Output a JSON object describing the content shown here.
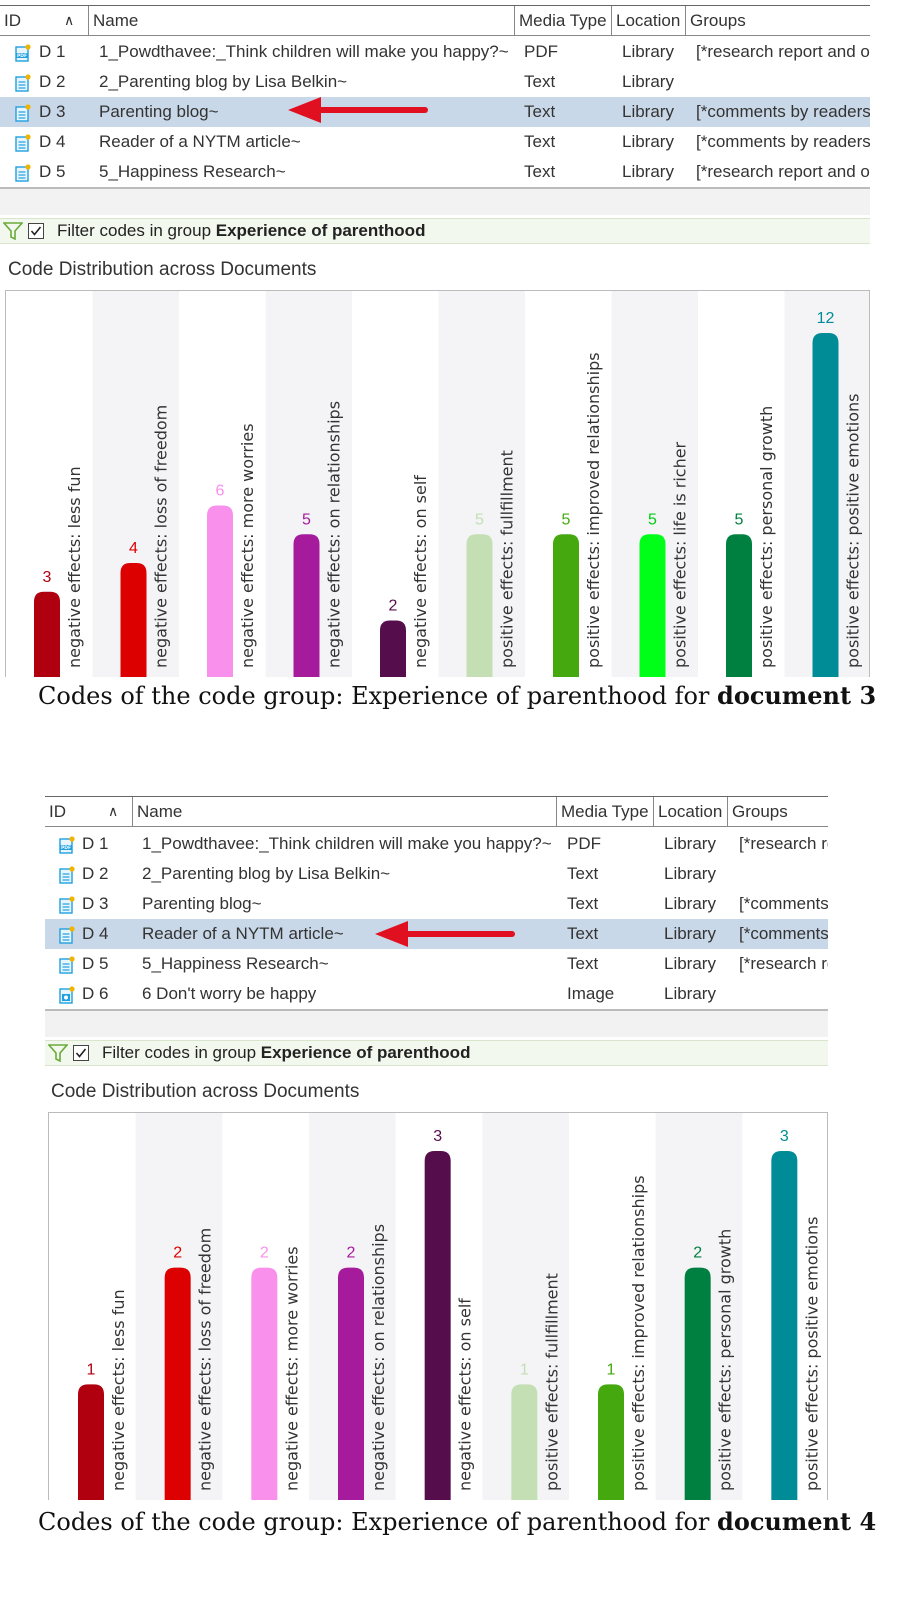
{
  "columns": {
    "id": "ID",
    "name": "Name",
    "media_type": "Media Type",
    "location": "Location",
    "groups": "Groups"
  },
  "panel1": {
    "rows": [
      {
        "id": "D 1",
        "name": "1_Powdthavee:_Think children will make you happy?~",
        "media": "PDF",
        "location": "Library",
        "groups": "[*research report and o",
        "icon": "pdf-doc-icon",
        "selected": false
      },
      {
        "id": "D 2",
        "name": "2_Parenting blog by Lisa Belkin~",
        "media": "Text",
        "location": "Library",
        "groups": "",
        "icon": "text-doc-icon",
        "selected": false
      },
      {
        "id": "D 3",
        "name": "Parenting blog~",
        "media": "Text",
        "location": "Library",
        "groups": "[*comments by readers",
        "icon": "text-doc-icon",
        "selected": true
      },
      {
        "id": "D 4",
        "name": "Reader of a NYTM article~",
        "media": "Text",
        "location": "Library",
        "groups": "[*comments by readers",
        "icon": "text-doc-icon",
        "selected": false
      },
      {
        "id": "D 5",
        "name": "5_Happiness Research~",
        "media": "Text",
        "location": "Library",
        "groups": "[*research report and o",
        "icon": "text-doc-icon",
        "selected": false
      }
    ],
    "filter_prefix": "Filter codes in group ",
    "filter_group": "Experience of parenthood",
    "dist_title": "Code Distribution across Documents",
    "caption_prefix": "Codes of the code group: Experience of parenthood for ",
    "caption_doc": "document 3"
  },
  "panel2": {
    "rows": [
      {
        "id": "D 1",
        "name": "1_Powdthavee:_Think children will make you happy?~",
        "media": "PDF",
        "location": "Library",
        "groups": "[*research re",
        "icon": "pdf-doc-icon",
        "selected": false
      },
      {
        "id": "D 2",
        "name": "2_Parenting blog by Lisa Belkin~",
        "media": "Text",
        "location": "Library",
        "groups": "",
        "icon": "text-doc-icon",
        "selected": false
      },
      {
        "id": "D 3",
        "name": "Parenting blog~",
        "media": "Text",
        "location": "Library",
        "groups": "[*comments",
        "icon": "text-doc-icon",
        "selected": false
      },
      {
        "id": "D 4",
        "name": "Reader of a NYTM article~",
        "media": "Text",
        "location": "Library",
        "groups": "[*comments",
        "icon": "text-doc-icon",
        "selected": true
      },
      {
        "id": "D 5",
        "name": "5_Happiness Research~",
        "media": "Text",
        "location": "Library",
        "groups": "[*research re",
        "icon": "text-doc-icon",
        "selected": false
      },
      {
        "id": "D 6",
        "name": "6 Don't worry be happy",
        "media": "Image",
        "location": "Library",
        "groups": "",
        "icon": "image-doc-icon",
        "selected": false
      }
    ],
    "filter_prefix": "Filter codes in group ",
    "filter_group": "Experience of parenthood",
    "dist_title": "Code Distribution across Documents",
    "caption_prefix": "Codes of the code group: Experience of parenthood for ",
    "caption_doc": "document 4"
  },
  "chart_data": [
    {
      "type": "bar",
      "categories": [
        "negative effects: less fun",
        "negative effects: loss of freedom",
        "negative effects: more worries",
        "negative effects: on relationships",
        "negative effects: on self",
        "positive effects: fullfillment",
        "positive effects: improved relationships",
        "positive effects: life is richer",
        "positive effects: personal growth",
        "positive effects: positive emotions"
      ],
      "values": [
        3,
        4,
        6,
        5,
        2,
        5,
        5,
        5,
        5,
        12
      ],
      "colors": [
        "#b00010",
        "#dd0000",
        "#f990ec",
        "#a51b9c",
        "#560d4c",
        "#c3dfb3",
        "#44a80e",
        "#00ff18",
        "#008040",
        "#008c96"
      ],
      "value_label_colors": [
        "#b00010",
        "#dd0000",
        "#f990ec",
        "#a51b9c",
        "#560d4c",
        "#c3dfb3",
        "#44a80e",
        "#00cc14",
        "#008040",
        "#008c96"
      ],
      "ylim": [
        0,
        12
      ]
    },
    {
      "type": "bar",
      "categories": [
        "negative effects: less fun",
        "negative effects: loss of freedom",
        "negative effects: more worries",
        "negative effects: on relationships",
        "negative effects: on self",
        "positive effects: fullfillment",
        "positive effects: improved relationships",
        "positive effects: personal growth",
        "positive effects: positive emotions"
      ],
      "values": [
        1,
        2,
        2,
        2,
        3,
        1,
        1,
        2,
        3
      ],
      "colors": [
        "#b00010",
        "#dd0000",
        "#f990ec",
        "#a51b9c",
        "#560d4c",
        "#c3dfb3",
        "#44a80e",
        "#008040",
        "#008c96"
      ],
      "value_label_colors": [
        "#b00010",
        "#dd0000",
        "#f990ec",
        "#a51b9c",
        "#560d4c",
        "#c3dfb3",
        "#44a80e",
        "#008040",
        "#008c96"
      ],
      "ylim": [
        0,
        3
      ]
    }
  ],
  "colors": {
    "selected_row": "#c9d8e8",
    "arrow": "#e01020",
    "filter_bg": "#f3f8ee",
    "funnel": "#6aaa3a",
    "icon_blue": "#1fa0e0",
    "icon_dot": "#f0b400"
  }
}
